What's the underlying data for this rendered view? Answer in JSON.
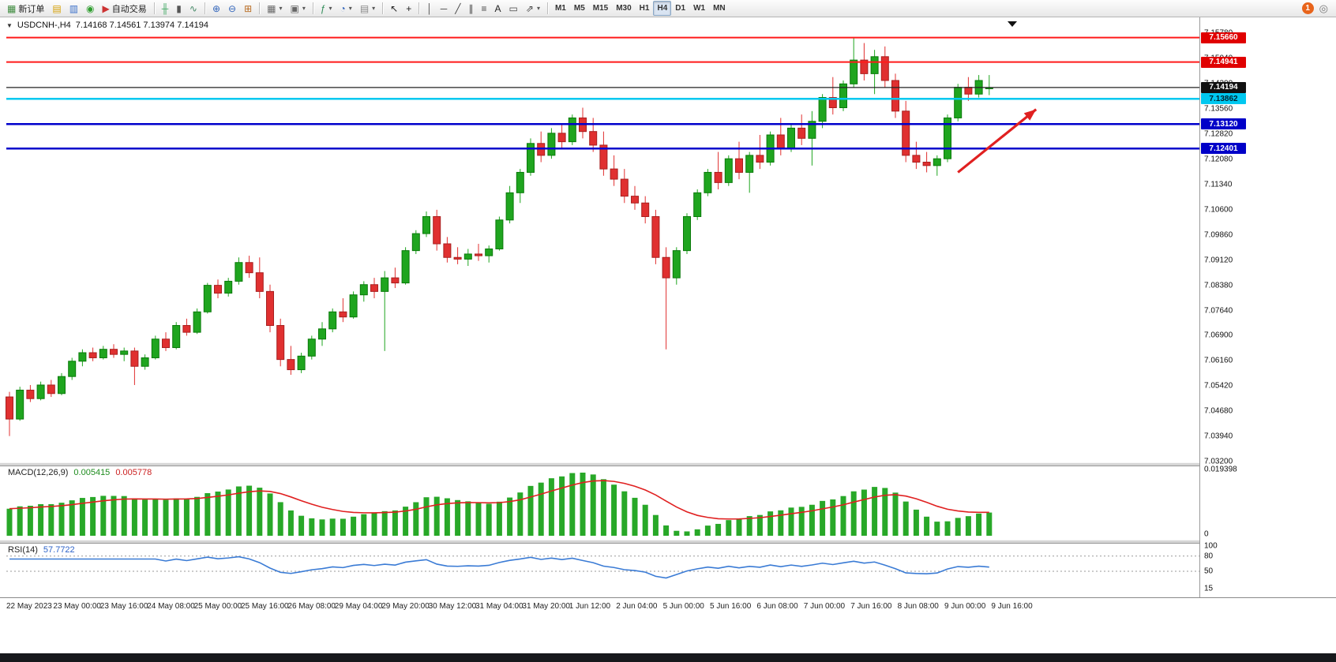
{
  "header": {
    "dropdown_glyph": "▼",
    "symbol": "USDCNH-,H4",
    "ohlc": "7.14168 7.14561 7.13974 7.14194"
  },
  "toolbar": {
    "notification_count": "1",
    "settings_glyph": "◎",
    "items": [
      {
        "type": "button",
        "name": "new-order-button",
        "glyph": "▦",
        "glyph_color": "#3c8a3c",
        "label": "新订单"
      },
      {
        "type": "button",
        "name": "market-watch-button",
        "glyph": "▤",
        "glyph_color": "#d59f00"
      },
      {
        "type": "button",
        "name": "navigator-button",
        "glyph": "▥",
        "glyph_color": "#3a6fc9"
      },
      {
        "type": "button",
        "name": "terminal-button",
        "glyph": "◉",
        "glyph_color": "#2f9e2f"
      },
      {
        "type": "button",
        "name": "autotrading-button",
        "glyph": "▶",
        "glyph_color": "#cc3333",
        "label": "自动交易"
      },
      {
        "type": "sep"
      },
      {
        "type": "button",
        "name": "bar-chart-button",
        "glyph": "╫",
        "glyph_color": "#44aa66"
      },
      {
        "type": "button",
        "name": "candlestick-chart-button",
        "glyph": "▮",
        "glyph_color": "#555555"
      },
      {
        "type": "button",
        "name": "line-chart-button",
        "glyph": "∿",
        "glyph_color": "#448866"
      },
      {
        "type": "sep"
      },
      {
        "type": "button",
        "name": "zoom-in-button",
        "glyph": "⊕",
        "glyph_color": "#3366bb"
      },
      {
        "type": "button",
        "name": "zoom-out-button",
        "glyph": "⊖",
        "glyph_color": "#3366bb"
      },
      {
        "type": "button",
        "name": "tile-windows-button",
        "glyph": "⊞",
        "glyph_color": "#b86a1f"
      },
      {
        "type": "sep"
      },
      {
        "type": "button",
        "name": "new-chart-button",
        "glyph": "▦",
        "glyph_color": "#666666",
        "caret": true
      },
      {
        "type": "button",
        "name": "profiles-button",
        "glyph": "▣",
        "glyph_color": "#666666",
        "caret": true
      },
      {
        "type": "sep"
      },
      {
        "type": "button",
        "name": "indicators-button",
        "glyph": "ƒ",
        "glyph_color": "#2e8b57",
        "caret": true
      },
      {
        "type": "button",
        "name": "periods-button",
        "glyph": "◔",
        "glyph_color": "#3366bb",
        "caret": true
      },
      {
        "type": "button",
        "name": "templates-button",
        "glyph": "▤",
        "glyph_color": "#888888",
        "caret": true
      },
      {
        "type": "sep"
      },
      {
        "type": "button",
        "name": "cursor-button",
        "glyph": "↖",
        "glyph_color": "#222222"
      },
      {
        "type": "button",
        "name": "crosshair-button",
        "glyph": "+",
        "glyph_color": "#222222"
      },
      {
        "type": "sep"
      },
      {
        "type": "button",
        "name": "vertical-line-button",
        "glyph": "│",
        "glyph_color": "#444444"
      },
      {
        "type": "button",
        "name": "horizontal-line-button",
        "glyph": "─",
        "glyph_color": "#444444"
      },
      {
        "type": "button",
        "name": "trendline-button",
        "glyph": "╱",
        "glyph_color": "#444444"
      },
      {
        "type": "button",
        "name": "channel-button",
        "glyph": "∥",
        "glyph_color": "#444444"
      },
      {
        "type": "button",
        "name": "fibonacci-button",
        "glyph": "≡",
        "glyph_color": "#444444"
      },
      {
        "type": "button",
        "name": "text-button",
        "glyph": "A",
        "glyph_color": "#222222"
      },
      {
        "type": "button",
        "name": "text-label-button",
        "glyph": "▭",
        "glyph_color": "#444444"
      },
      {
        "type": "button",
        "name": "arrows-button",
        "glyph": "⇗",
        "glyph_color": "#444444",
        "caret": true
      },
      {
        "type": "sep"
      },
      {
        "type": "tf",
        "name": "timeframe-m1-button",
        "label": "M1"
      },
      {
        "type": "tf",
        "name": "timeframe-m5-button",
        "label": "M5"
      },
      {
        "type": "tf",
        "name": "timeframe-m15-button",
        "label": "M15"
      },
      {
        "type": "tf",
        "name": "timeframe-m30-button",
        "label": "M30"
      },
      {
        "type": "tf",
        "name": "timeframe-h1-button",
        "label": "H1"
      },
      {
        "type": "tf",
        "name": "timeframe-h4-button",
        "label": "H4",
        "active": true
      },
      {
        "type": "tf",
        "name": "timeframe-d1-button",
        "label": "D1"
      },
      {
        "type": "tf",
        "name": "timeframe-w1-button",
        "label": "W1"
      },
      {
        "type": "tf",
        "name": "timeframe-mn-button",
        "label": "MN"
      }
    ]
  },
  "macd": {
    "name": "MACD(12,26,9)",
    "value": "0.005415",
    "signal_value": "0.005778",
    "scale_top": "0.019398",
    "scale_bottom": "0",
    "bar_color": "#28a828",
    "signal_color": "#e02020"
  },
  "rsi": {
    "name": "RSI(14)",
    "value": "57.7722",
    "line_color": "#3a7bd5",
    "levels": [
      "100",
      "80",
      "50",
      "15"
    ],
    "level_values": [
      100,
      80,
      50,
      15
    ],
    "level_lines": [
      80,
      50
    ]
  },
  "chart_data": {
    "type": "candlestick",
    "symbol": "USDCNH",
    "timeframe": "H4",
    "colors": {
      "up": "#1fa51f",
      "up_border": "#0a7a0a",
      "down": "#e03030",
      "down_border": "#a81f1f"
    },
    "price_axis_labels": [
      "7.15780",
      "7.15040",
      "7.14300",
      "7.13560",
      "7.12820",
      "7.12080",
      "7.11340",
      "7.10600",
      "7.09860",
      "7.09120",
      "7.08380",
      "7.07640",
      "7.06900",
      "7.06160",
      "7.05420",
      "7.04680",
      "7.03940",
      "7.03200"
    ],
    "time_labels": [
      "22 May 2023",
      "23 May 00:00",
      "23 May 16:00",
      "24 May 08:00",
      "25 May 00:00",
      "25 May 16:00",
      "26 May 08:00",
      "29 May 04:00",
      "29 May 20:00",
      "30 May 12:00",
      "31 May 04:00",
      "31 May 20:00",
      "1 Jun 12:00",
      "2 Jun 04:00",
      "5 Jun 00:00",
      "5 Jun 16:00",
      "6 Jun 08:00",
      "7 Jun 00:00",
      "7 Jun 16:00",
      "8 Jun 08:00",
      "9 Jun 00:00",
      "9 Jun 16:00"
    ],
    "hlines": [
      {
        "name": "resistance-line-upper",
        "price": 7.1566,
        "label": "7.15660",
        "color": "#ff1a1a",
        "width": 2,
        "badge_bg": "#e00000",
        "badge_fg": "#ffffff"
      },
      {
        "name": "resistance-line-lower",
        "price": 7.14941,
        "label": "7.14941",
        "color": "#ff1a1a",
        "width": 2,
        "badge_bg": "#e00000",
        "badge_fg": "#ffffff"
      },
      {
        "name": "current-price-line",
        "price": 7.14194,
        "label": "7.14194",
        "color": "#222222",
        "width": 1.2,
        "badge_bg": "#111111",
        "badge_fg": "#ffffff"
      },
      {
        "name": "cyan-level-line",
        "price": 7.13862,
        "label": "7.13862",
        "color": "#00c8f0",
        "width": 2.5,
        "badge_bg": "#00c8f0",
        "badge_fg": "#00222e"
      },
      {
        "name": "support-line-upper",
        "price": 7.1312,
        "label": "7.13120",
        "color": "#0000cc",
        "width": 2.5,
        "badge_bg": "#0000c8",
        "badge_fg": "#ffffff"
      },
      {
        "name": "support-line-lower",
        "price": 7.12401,
        "label": "7.12401",
        "color": "#0000cc",
        "width": 2.5,
        "badge_bg": "#0000c8",
        "badge_fg": "#ffffff"
      }
    ],
    "annotation": {
      "type": "arrow",
      "color": "#e02020",
      "from": {
        "index": 91,
        "price": 7.117
      },
      "to": {
        "index": 98.5,
        "price": 7.1355
      }
    },
    "candles": [
      [
        7.051,
        7.0525,
        7.0395,
        7.0445
      ],
      [
        7.0445,
        7.054,
        7.044,
        7.053
      ],
      [
        7.053,
        7.0545,
        7.0495,
        7.0505
      ],
      [
        7.0505,
        7.0555,
        7.05,
        7.0545
      ],
      [
        7.0545,
        7.056,
        7.051,
        7.052
      ],
      [
        7.052,
        7.058,
        7.0515,
        7.057
      ],
      [
        7.057,
        7.0625,
        7.056,
        7.0615
      ],
      [
        7.0615,
        7.065,
        7.06,
        7.064
      ],
      [
        7.064,
        7.0655,
        7.0615,
        7.0625
      ],
      [
        7.0625,
        7.066,
        7.062,
        7.065
      ],
      [
        7.065,
        7.0665,
        7.0625,
        7.0635
      ],
      [
        7.0635,
        7.0655,
        7.0615,
        7.0645
      ],
      [
        7.0645,
        7.0655,
        7.0545,
        7.06
      ],
      [
        7.06,
        7.0635,
        7.059,
        7.0625
      ],
      [
        7.0625,
        7.069,
        7.062,
        7.068
      ],
      [
        7.068,
        7.07,
        7.0645,
        7.0655
      ],
      [
        7.0655,
        7.073,
        7.065,
        7.072
      ],
      [
        7.072,
        7.074,
        7.069,
        7.07
      ],
      [
        7.07,
        7.077,
        7.0695,
        7.076
      ],
      [
        7.076,
        7.0845,
        7.0755,
        7.0838
      ],
      [
        7.0838,
        7.0855,
        7.08,
        7.0815
      ],
      [
        7.0815,
        7.086,
        7.0805,
        7.085
      ],
      [
        7.085,
        7.092,
        7.084,
        7.0905
      ],
      [
        7.0905,
        7.0925,
        7.086,
        7.0875
      ],
      [
        7.0875,
        7.092,
        7.08,
        7.082
      ],
      [
        7.082,
        7.084,
        7.07,
        7.072
      ],
      [
        7.072,
        7.074,
        7.06,
        7.062
      ],
      [
        7.062,
        7.066,
        7.0575,
        7.059
      ],
      [
        7.059,
        7.064,
        7.058,
        7.063
      ],
      [
        7.063,
        7.069,
        7.062,
        7.068
      ],
      [
        7.068,
        7.073,
        7.066,
        7.071
      ],
      [
        7.071,
        7.077,
        7.07,
        7.076
      ],
      [
        7.076,
        7.08,
        7.073,
        7.0745
      ],
      [
        7.0745,
        7.082,
        7.074,
        7.081
      ],
      [
        7.081,
        7.085,
        7.079,
        7.084
      ],
      [
        7.084,
        7.086,
        7.08,
        7.082
      ],
      [
        7.082,
        7.088,
        7.0645,
        7.086
      ],
      [
        7.086,
        7.089,
        7.083,
        7.0845
      ],
      [
        7.0845,
        7.095,
        7.084,
        7.094
      ],
      [
        7.094,
        7.1,
        7.093,
        7.099
      ],
      [
        7.099,
        7.1055,
        7.098,
        7.104
      ],
      [
        7.104,
        7.106,
        7.094,
        7.096
      ],
      [
        7.096,
        7.098,
        7.0905,
        7.092
      ],
      [
        7.092,
        7.095,
        7.09,
        7.0915
      ],
      [
        7.0915,
        7.0945,
        7.0895,
        7.093
      ],
      [
        7.093,
        7.096,
        7.091,
        7.0925
      ],
      [
        7.0925,
        7.0955,
        7.0905,
        7.0945
      ],
      [
        7.0945,
        7.104,
        7.094,
        7.103
      ],
      [
        7.103,
        7.113,
        7.102,
        7.111
      ],
      [
        7.111,
        7.118,
        7.108,
        7.117
      ],
      [
        7.117,
        7.127,
        7.116,
        7.1255
      ],
      [
        7.1255,
        7.129,
        7.12,
        7.122
      ],
      [
        7.122,
        7.13,
        7.121,
        7.1285
      ],
      [
        7.1285,
        7.131,
        7.124,
        7.126
      ],
      [
        7.126,
        7.134,
        7.125,
        7.133
      ],
      [
        7.133,
        7.136,
        7.127,
        7.129
      ],
      [
        7.129,
        7.133,
        7.123,
        7.125
      ],
      [
        7.125,
        7.129,
        7.116,
        7.118
      ],
      [
        7.118,
        7.122,
        7.113,
        7.115
      ],
      [
        7.115,
        7.118,
        7.108,
        7.11
      ],
      [
        7.11,
        7.113,
        7.106,
        7.108
      ],
      [
        7.108,
        7.11,
        7.102,
        7.104
      ],
      [
        7.104,
        7.106,
        7.09,
        7.092
      ],
      [
        7.092,
        7.095,
        7.065,
        7.086
      ],
      [
        7.086,
        7.095,
        7.084,
        7.094
      ],
      [
        7.094,
        7.105,
        7.093,
        7.104
      ],
      [
        7.104,
        7.112,
        7.103,
        7.111
      ],
      [
        7.111,
        7.118,
        7.11,
        7.117
      ],
      [
        7.117,
        7.123,
        7.112,
        7.114
      ],
      [
        7.114,
        7.122,
        7.113,
        7.121
      ],
      [
        7.121,
        7.126,
        7.115,
        7.117
      ],
      [
        7.117,
        7.123,
        7.111,
        7.122
      ],
      [
        7.122,
        7.128,
        7.118,
        7.12
      ],
      [
        7.12,
        7.129,
        7.119,
        7.128
      ],
      [
        7.128,
        7.133,
        7.122,
        7.124
      ],
      [
        7.124,
        7.131,
        7.123,
        7.13
      ],
      [
        7.13,
        7.134,
        7.125,
        7.127
      ],
      [
        7.127,
        7.135,
        7.119,
        7.132
      ],
      [
        7.132,
        7.14,
        7.13,
        7.139
      ],
      [
        7.139,
        7.145,
        7.134,
        7.136
      ],
      [
        7.136,
        7.144,
        7.135,
        7.143
      ],
      [
        7.143,
        7.1566,
        7.142,
        7.15
      ],
      [
        7.15,
        7.155,
        7.144,
        7.146
      ],
      [
        7.146,
        7.153,
        7.14,
        7.151
      ],
      [
        7.151,
        7.154,
        7.142,
        7.144
      ],
      [
        7.144,
        7.146,
        7.133,
        7.135
      ],
      [
        7.135,
        7.138,
        7.12,
        7.122
      ],
      [
        7.122,
        7.126,
        7.118,
        7.12
      ],
      [
        7.12,
        7.123,
        7.117,
        7.119
      ],
      [
        7.119,
        7.122,
        7.116,
        7.121
      ],
      [
        7.121,
        7.134,
        7.12,
        7.133
      ],
      [
        7.133,
        7.143,
        7.132,
        7.142
      ],
      [
        7.142,
        7.145,
        7.138,
        7.14
      ],
      [
        7.14,
        7.1456,
        7.139,
        7.144
      ],
      [
        7.1417,
        7.1456,
        7.1397,
        7.1419
      ]
    ]
  }
}
